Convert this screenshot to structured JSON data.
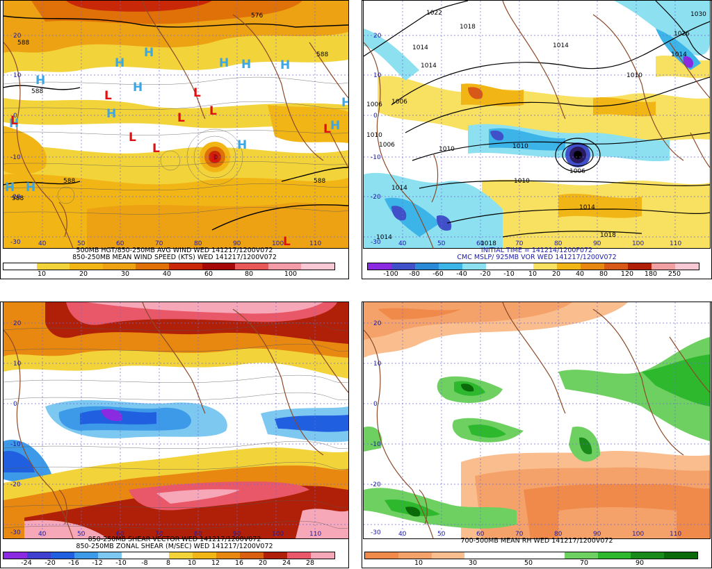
{
  "panels": [
    {
      "id": "p1",
      "caption_lines": [
        "500MB HGT/850-250MB AVG WIND WED 141217/1200V072",
        "850-250MB MEAN WIND SPEED (KTS) WED 141217/1200V072"
      ],
      "caption_color": "#000000",
      "colorbar_colors": [
        "#ffffff",
        "#f3d33a",
        "#f2b516",
        "#eda214",
        "#e07008",
        "#c82808",
        "#a60808",
        "#e85858",
        "#f39ca8",
        "#f8c8d4"
      ],
      "colorbar_labels": [
        "10",
        "20",
        "30",
        "40",
        "60",
        "80",
        "100"
      ],
      "lat_labels": [
        "20",
        "10",
        "0",
        "-10",
        "-20",
        "-30"
      ],
      "lon_labels": [
        "40",
        "50",
        "60",
        "70",
        "80",
        "90",
        "100",
        "110"
      ],
      "contour_labels": [
        "588",
        "588",
        "588",
        "588",
        "588",
        "588",
        "576"
      ],
      "high_symbol": "H",
      "low_symbol": "L"
    },
    {
      "id": "p2",
      "caption_lines": [
        "INITIAL TIME = 141214/1200F072",
        "CMC MSLP/ 925MB VOR WED 141217/1200V072"
      ],
      "caption_color": "#1a1aa8",
      "colorbar_colors": [
        "#8a2be2",
        "#4050c8",
        "#2a8ad8",
        "#3cb4e8",
        "#8ce0f0",
        "#ffffff",
        "#ffffff",
        "#f8e060",
        "#f2b516",
        "#e88810",
        "#d85818",
        "#b02008",
        "#f0a0a0",
        "#f8c8d4"
      ],
      "colorbar_labels": [
        "-100",
        "-80",
        "-60",
        "-40",
        "-20",
        "-10",
        "10",
        "20",
        "40",
        "80",
        "120",
        "180",
        "250"
      ],
      "lat_labels": [
        "20",
        "10",
        "0",
        "-10",
        "-20",
        "-30"
      ],
      "lon_labels": [
        "40",
        "50",
        "60",
        "70",
        "80",
        "90",
        "100",
        "110"
      ],
      "isobar_labels": [
        "1022",
        "1018",
        "1014",
        "1014",
        "1014",
        "1010",
        "1010",
        "1006",
        "1006",
        "1006",
        "1006",
        "1010",
        "1010",
        "1010",
        "1014",
        "1014",
        "1014",
        "1018",
        "1018",
        "1026",
        "1030",
        "1014"
      ]
    },
    {
      "id": "p3",
      "caption_lines": [
        "850-250MB SHEAR VECTOR WED 141217/1200V072",
        "850-250MB ZONAL SHEAR (M/SEC) WED 141217/1200V072"
      ],
      "caption_color": "#000000",
      "colorbar_colors": [
        "#8a2be2",
        "#4040d0",
        "#2060e0",
        "#3c9ae8",
        "#7cc8f0",
        "#ffffff",
        "#ffffff",
        "#f3d33a",
        "#f2b516",
        "#e88810",
        "#d86010",
        "#b02008",
        "#e85868",
        "#f7a8b8"
      ],
      "colorbar_labels": [
        "-24",
        "-20",
        "-16",
        "-12",
        "-10",
        "-8",
        "8",
        "10",
        "12",
        "16",
        "20",
        "24",
        "28"
      ],
      "lat_labels": [
        "20",
        "10",
        "0",
        "-10",
        "-20",
        "-30"
      ],
      "lon_labels": [
        "40",
        "50",
        "60",
        "70",
        "80",
        "90",
        "100",
        "110"
      ]
    },
    {
      "id": "p4",
      "caption_lines": [
        "700-500MB MEAN RH WED 141217/1200V072"
      ],
      "caption_color": "#000000",
      "colorbar_colors": [
        "#f08a4b",
        "#f5a26a",
        "#f9bd8e",
        "#ffffff",
        "#ffffff",
        "#ffffff",
        "#6ed060",
        "#2eb82e",
        "#1a8a1a",
        "#0a6a0a"
      ],
      "colorbar_labels": [
        "10",
        "30",
        "50",
        "70",
        "90"
      ],
      "lat_labels": [
        "20",
        "10",
        "0",
        "-10",
        "-20",
        "-30"
      ],
      "lon_labels": [
        "40",
        "50",
        "60",
        "70",
        "80",
        "90",
        "100",
        "110"
      ]
    }
  ]
}
